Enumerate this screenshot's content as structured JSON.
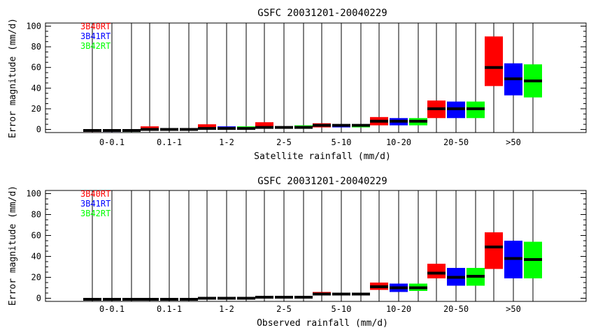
{
  "chart_data": [
    {
      "type": "box",
      "title": "GSFC 20031201-20040229",
      "xlabel": "Satellite rainfall (mm/d)",
      "ylabel": "Error magnitude (mm/d)",
      "ylim": [
        -3,
        103
      ],
      "yticks": [
        0,
        20,
        40,
        60,
        80,
        100
      ],
      "categories": [
        "0-0.1",
        "0.1-1",
        "1-2",
        "2-5",
        "5-10",
        "10-20",
        "20-50",
        ">50"
      ],
      "legend_position": "top-left",
      "series": [
        {
          "name": "3B40RT",
          "color": "#ff0000",
          "boxes": [
            [
              -2,
              -1,
              -1
            ],
            [
              -1,
              0,
              3
            ],
            [
              0,
              1,
              5
            ],
            [
              1,
              2,
              7
            ],
            [
              2,
              4,
              6
            ],
            [
              4,
              8,
              12
            ],
            [
              11,
              20,
              28
            ],
            [
              42,
              60,
              90
            ]
          ]
        },
        {
          "name": "3B41RT",
          "color": "#0000ff",
          "boxes": [
            [
              -2,
              -1,
              -1
            ],
            [
              -1,
              0,
              1
            ],
            [
              0,
              1,
              3
            ],
            [
              1,
              2,
              3
            ],
            [
              2,
              4,
              5
            ],
            [
              4,
              8,
              11
            ],
            [
              11,
              20,
              27
            ],
            [
              33,
              49,
              64
            ]
          ]
        },
        {
          "name": "3B42RT",
          "color": "#00ff00",
          "boxes": [
            [
              -2,
              -1,
              -1
            ],
            [
              -1,
              0,
              1
            ],
            [
              0,
              1,
              3
            ],
            [
              1,
              2,
              4
            ],
            [
              2,
              4,
              5
            ],
            [
              4,
              8,
              11
            ],
            [
              11,
              20,
              27
            ],
            [
              31,
              47,
              63
            ]
          ]
        }
      ]
    },
    {
      "type": "box",
      "title": "GSFC 20031201-20040229",
      "xlabel": "Observed rainfall (mm/d)",
      "ylabel": "Error magnitude (mm/d)",
      "ylim": [
        -3,
        103
      ],
      "yticks": [
        0,
        20,
        40,
        60,
        80,
        100
      ],
      "categories": [
        "0-0.1",
        "0.1-1",
        "1-2",
        "2-5",
        "5-10",
        "10-20",
        "20-50",
        ">50"
      ],
      "legend_position": "top-left",
      "series": [
        {
          "name": "3B40RT",
          "color": "#ff0000",
          "boxes": [
            [
              -2,
              -1,
              -1
            ],
            [
              -2,
              -1,
              -1
            ],
            [
              -1,
              0,
              0
            ],
            [
              1,
              1,
              2
            ],
            [
              3,
              4,
              6
            ],
            [
              8,
              11,
              15
            ],
            [
              19,
              24,
              33
            ],
            [
              28,
              49,
              63
            ]
          ]
        },
        {
          "name": "3B41RT",
          "color": "#0000ff",
          "boxes": [
            [
              -2,
              -1,
              -1
            ],
            [
              -2,
              -1,
              -1
            ],
            [
              -1,
              0,
              0
            ],
            [
              1,
              1,
              2
            ],
            [
              3,
              4,
              5
            ],
            [
              6,
              10,
              14
            ],
            [
              12,
              20,
              29
            ],
            [
              19,
              38,
              55
            ]
          ]
        },
        {
          "name": "3B42RT",
          "color": "#00ff00",
          "boxes": [
            [
              -2,
              -1,
              -1
            ],
            [
              -2,
              -1,
              -1
            ],
            [
              -1,
              0,
              0
            ],
            [
              1,
              1,
              2
            ],
            [
              3,
              4,
              5
            ],
            [
              7,
              10,
              14
            ],
            [
              12,
              21,
              29
            ],
            [
              19,
              37,
              54
            ]
          ]
        }
      ]
    }
  ]
}
